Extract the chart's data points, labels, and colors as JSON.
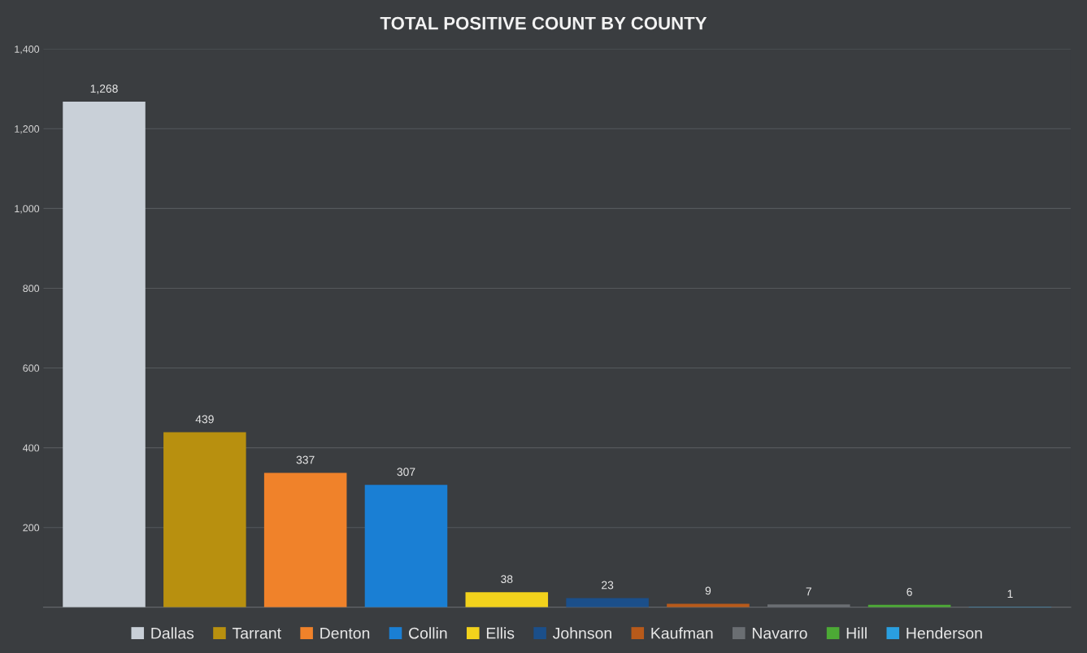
{
  "chart_data": {
    "type": "bar",
    "title": "TOTAL POSITIVE COUNT BY COUNTY",
    "categories": [
      null
    ],
    "series": [
      {
        "name": "Dallas",
        "color": "#c9d0d8",
        "values": [
          1268
        ],
        "value_labels": [
          "1,268"
        ]
      },
      {
        "name": "Tarrant",
        "color": "#b8900f",
        "values": [
          439
        ],
        "value_labels": [
          "439"
        ]
      },
      {
        "name": "Denton",
        "color": "#f0822a",
        "values": [
          337
        ],
        "value_labels": [
          "337"
        ]
      },
      {
        "name": "Collin",
        "color": "#1a7fd4",
        "values": [
          307
        ],
        "value_labels": [
          "307"
        ]
      },
      {
        "name": "Ellis",
        "color": "#f2d21c",
        "values": [
          38
        ],
        "value_labels": [
          "38"
        ]
      },
      {
        "name": "Johnson",
        "color": "#1b4f8a",
        "values": [
          23
        ],
        "value_labels": [
          "23"
        ]
      },
      {
        "name": "Kaufman",
        "color": "#b85a1a",
        "values": [
          9
        ],
        "value_labels": [
          "9"
        ]
      },
      {
        "name": "Navarro",
        "color": "#6a6e72",
        "values": [
          7
        ],
        "value_labels": [
          "7"
        ]
      },
      {
        "name": "Hill",
        "color": "#4caa35",
        "values": [
          6
        ],
        "value_labels": [
          "6"
        ]
      },
      {
        "name": "Henderson",
        "color": "#2a9fe0",
        "values": [
          1
        ],
        "value_labels": [
          "1"
        ]
      }
    ],
    "ylim": [
      0,
      1400
    ],
    "yticks": [
      {
        "value": 0,
        "label": null
      },
      200,
      400,
      600,
      800,
      {
        "value": 1000,
        "label": "1,000"
      },
      {
        "value": 1200,
        "label": "1,200"
      },
      {
        "value": 1400,
        "label": "1,400"
      }
    ],
    "grid": "y",
    "legend": "bottom",
    "tick_labels": "y"
  }
}
